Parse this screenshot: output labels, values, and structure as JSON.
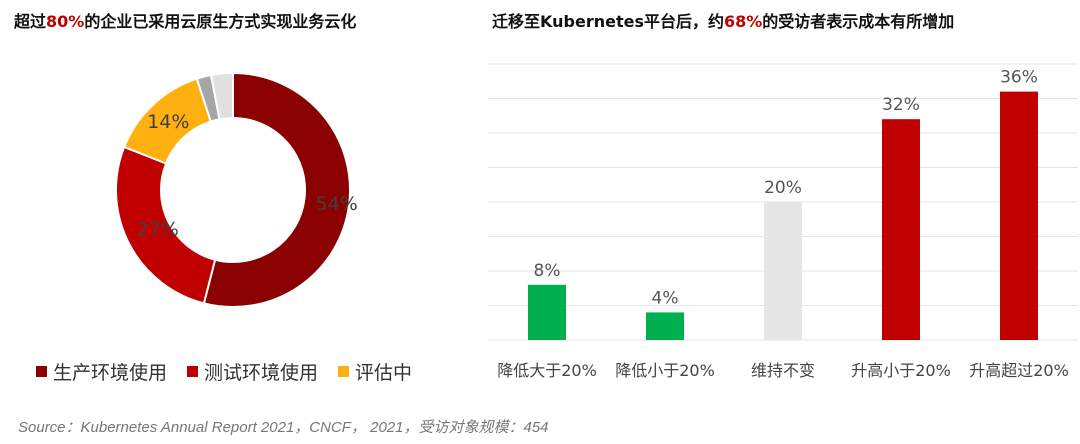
{
  "chart_data": [
    {
      "type": "pie",
      "title_parts": [
        "超过",
        "80%",
        "的企业已采用云原生方式实现业务云化"
      ],
      "slices": [
        {
          "name": "生产环境使用",
          "value": 54,
          "label": "54%",
          "color": "#8b0000"
        },
        {
          "name": "测试环境使用",
          "value": 27,
          "label": "27%",
          "color": "#c00000"
        },
        {
          "name": "评估中",
          "value": 14,
          "label": "14%",
          "color": "#ffb010"
        },
        {
          "name": "",
          "value": 2,
          "label": "",
          "color": "#a6a6a6"
        },
        {
          "name": "",
          "value": 3,
          "label": "",
          "color": "#e0e0e0"
        }
      ],
      "legend": [
        "生产环境使用",
        "测试环境使用",
        "评估中"
      ],
      "legend_position": "bottom",
      "donut": true
    },
    {
      "type": "bar",
      "title_parts": [
        "迁移至Kubernetes平台后，约",
        "68%",
        "的受访者表示成本有所增加"
      ],
      "categories": [
        "降低大于20%",
        "降低小于20%",
        "维持不变",
        "升高小于20%",
        "升高超过20%"
      ],
      "values": [
        8,
        4,
        20,
        32,
        36
      ],
      "data_labels": [
        "8%",
        "4%",
        "20%",
        "32%",
        "36%"
      ],
      "colors": [
        "#00b050",
        "#00b050",
        "#e6e6e6",
        "#c00000",
        "#c00000"
      ],
      "ylim": [
        0,
        40
      ],
      "grid": true,
      "xlabel": "",
      "ylabel": ""
    }
  ],
  "source": "Source：Kubernetes Annual Report 2021，CNCF， 2021，受访对象规模：454"
}
